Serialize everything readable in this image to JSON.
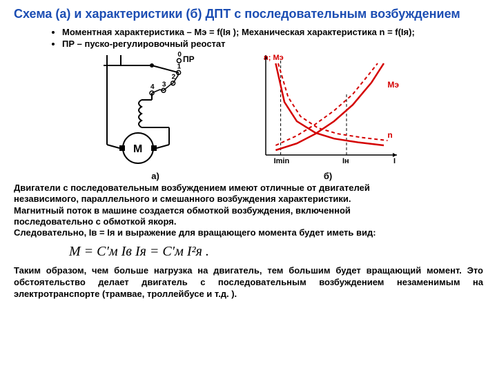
{
  "title": "Схема (а) и характеристики (б) ДПТ с последовательным возбуждением",
  "bullet1": "Моментная характеристика – Мэ = f(Iя ); Механическая характеристика n = f(Iя);",
  "bullet2": "ПР – пуско-регулировочный реостат",
  "schematic": {
    "caption": "а)",
    "PR_label": "ПР",
    "tap_labels": [
      "0",
      "1",
      "2",
      "3",
      "4"
    ],
    "motor_label": "М",
    "stroke": "#000000"
  },
  "chart": {
    "caption": "б)",
    "y_label": "n; Мэ",
    "x_label": "I",
    "tick_Imin": "Imin",
    "tick_In": "Iн",
    "curve_Me_label": "Мэ",
    "curve_n_label": "n",
    "axis_color": "#000000",
    "grid_dash": "#000000",
    "curve_Me_solid": "#d40000",
    "curve_Me_dash": "#d40000",
    "curve_n_solid": "#d40000",
    "curve_n_dash": "#d40000",
    "label_color": "#d40000",
    "xlim": [
      0,
      100
    ],
    "ylim": [
      0,
      100
    ],
    "n_solid_pts": [
      [
        8,
        95
      ],
      [
        15,
        55
      ],
      [
        25,
        35
      ],
      [
        40,
        23
      ],
      [
        55,
        17
      ],
      [
        75,
        13
      ],
      [
        95,
        10
      ]
    ],
    "n_dash_pts": [
      [
        10,
        95
      ],
      [
        18,
        60
      ],
      [
        28,
        40
      ],
      [
        42,
        28
      ],
      [
        58,
        22
      ],
      [
        78,
        18
      ],
      [
        98,
        15
      ]
    ],
    "Me_solid_pts": [
      [
        8,
        5
      ],
      [
        25,
        12
      ],
      [
        40,
        22
      ],
      [
        55,
        35
      ],
      [
        70,
        52
      ],
      [
        85,
        75
      ],
      [
        95,
        95
      ]
    ],
    "Me_dash_pts": [
      [
        8,
        10
      ],
      [
        25,
        20
      ],
      [
        40,
        32
      ],
      [
        55,
        46
      ],
      [
        70,
        63
      ],
      [
        82,
        82
      ],
      [
        90,
        95
      ]
    ]
  },
  "para1a": "Двигатели с последовательным возбуждением имеют отличные от двигателей",
  "para1b": "независимого, параллельного и смешанного возбуждения характеристики.",
  "para1c": "Магнитный поток в машине создается обмоткой возбуждения, включенной",
  "para1d": "последовательно с обмоткой якоря.",
  "para1e": "Следовательно, Iв = Iя и выражение для вращающего момента будет иметь вид:",
  "formula": "M = C′м Iв Iя = C′м I²я .",
  "concl": "Таким образом, чем больше нагрузка на двигатель, тем большим будет вращающий момент. Это обстоятельство делает двигатель с последовательным возбуждением  незаменимым на электротранспорте (трамвае, троллейбусе и т.д. ).",
  "font_sizes": {
    "title": 18,
    "body": 13,
    "formula": 20,
    "svg_small": 11
  }
}
